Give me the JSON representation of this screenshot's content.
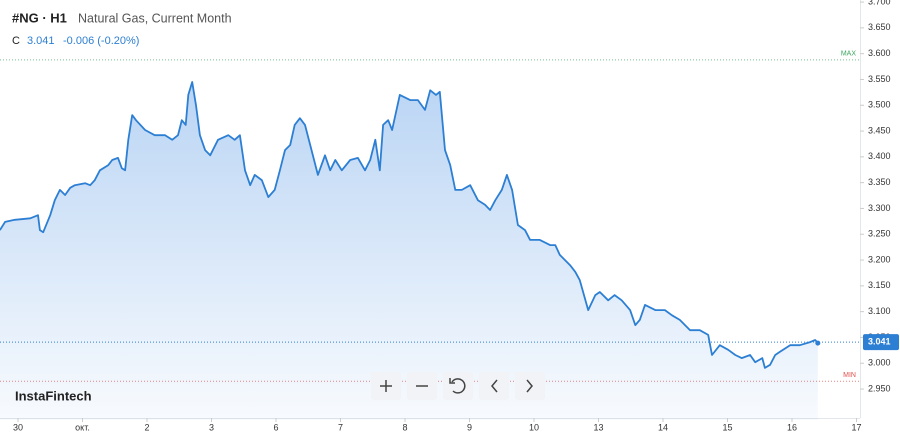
{
  "chart_data": {
    "type": "line",
    "title": "#NG · H1",
    "subtitle": "Natural Gas, Current Month",
    "legend": {
      "label": "C",
      "close": "3.041",
      "change": "-0.006 (-0.20%)"
    },
    "watermark": "InstaFintech",
    "color": "#2d7fd3",
    "xlim": [
      -0.279,
      13.054
    ],
    "ylim": [
      2.89,
      3.704
    ],
    "xticks": [
      {
        "value": 0,
        "label": "30"
      },
      {
        "value": 1,
        "label": "окт."
      },
      {
        "value": 2,
        "label": "2"
      },
      {
        "value": 3,
        "label": "3"
      },
      {
        "value": 4,
        "label": "6"
      },
      {
        "value": 5,
        "label": "7"
      },
      {
        "value": 6,
        "label": "8"
      },
      {
        "value": 7,
        "label": "9"
      },
      {
        "value": 8,
        "label": "10"
      },
      {
        "value": 9,
        "label": "13"
      },
      {
        "value": 10,
        "label": "14"
      },
      {
        "value": 11,
        "label": "15"
      },
      {
        "value": 12,
        "label": "16"
      },
      {
        "value": 13,
        "label": "17"
      }
    ],
    "yticks": [
      {
        "value": 2.95,
        "label": "2.950"
      },
      {
        "value": 3.0,
        "label": "3.000"
      },
      {
        "value": 3.05,
        "label": "3.050"
      },
      {
        "value": 3.1,
        "label": "3.100"
      },
      {
        "value": 3.15,
        "label": "3.150"
      },
      {
        "value": 3.2,
        "label": "3.200"
      },
      {
        "value": 3.25,
        "label": "3.250"
      },
      {
        "value": 3.3,
        "label": "3.300"
      },
      {
        "value": 3.35,
        "label": "3.350"
      },
      {
        "value": 3.4,
        "label": "3.400"
      },
      {
        "value": 3.45,
        "label": "3.450"
      },
      {
        "value": 3.5,
        "label": "3.500"
      },
      {
        "value": 3.55,
        "label": "3.550"
      },
      {
        "value": 3.6,
        "label": "3.600"
      },
      {
        "value": 3.65,
        "label": "3.650"
      },
      {
        "value": 3.7,
        "label": "3.700"
      }
    ],
    "max_line": {
      "value": 3.588,
      "label": "MAX",
      "color": "#3aa55d"
    },
    "min_line": {
      "value": 2.965,
      "label": "MIN",
      "color": "#e0504a"
    },
    "last_price": {
      "value": 3.041,
      "label": "3.041"
    },
    "x": [
      -0.28,
      -0.2,
      -0.05,
      0.19,
      0.31,
      0.34,
      0.39,
      0.5,
      0.57,
      0.65,
      0.73,
      0.81,
      0.88,
      1.04,
      1.12,
      1.19,
      1.27,
      1.4,
      1.46,
      1.55,
      1.61,
      1.66,
      1.71,
      1.77,
      1.83,
      1.97,
      2.12,
      2.28,
      2.39,
      2.48,
      2.54,
      2.6,
      2.64,
      2.7,
      2.76,
      2.82,
      2.9,
      2.98,
      3.1,
      3.26,
      3.36,
      3.44,
      3.52,
      3.6,
      3.67,
      3.78,
      3.88,
      3.98,
      4.06,
      4.14,
      4.22,
      4.29,
      4.37,
      4.45,
      4.53,
      4.65,
      4.76,
      4.84,
      4.92,
      5.02,
      5.15,
      5.27,
      5.38,
      5.46,
      5.54,
      5.61,
      5.66,
      5.74,
      5.8,
      5.92,
      6.08,
      6.2,
      6.31,
      6.39,
      6.48,
      6.54,
      6.62,
      6.7,
      6.78,
      6.88,
      7.01,
      7.13,
      7.24,
      7.32,
      7.4,
      7.5,
      7.58,
      7.66,
      7.75,
      7.86,
      7.94,
      8.09,
      8.25,
      8.33,
      8.4,
      8.56,
      8.64,
      8.71,
      8.84,
      8.95,
      9.02,
      9.15,
      9.25,
      9.36,
      9.49,
      9.57,
      9.64,
      9.72,
      9.88,
      10.03,
      10.14,
      10.26,
      10.42,
      10.57,
      10.7,
      10.76,
      10.88,
      11.01,
      11.12,
      11.22,
      11.35,
      11.43,
      11.54,
      11.58,
      11.66,
      11.74,
      11.81,
      11.97,
      12.12,
      12.28,
      12.36,
      12.4
    ],
    "values": [
      3.258,
      3.274,
      3.278,
      3.281,
      3.287,
      3.258,
      3.254,
      3.287,
      3.316,
      3.336,
      3.326,
      3.34,
      3.345,
      3.349,
      3.345,
      3.355,
      3.374,
      3.384,
      3.394,
      3.398,
      3.378,
      3.374,
      3.433,
      3.481,
      3.471,
      3.452,
      3.442,
      3.442,
      3.433,
      3.442,
      3.471,
      3.462,
      3.52,
      3.545,
      3.5,
      3.442,
      3.413,
      3.403,
      3.433,
      3.442,
      3.433,
      3.442,
      3.374,
      3.345,
      3.365,
      3.355,
      3.322,
      3.336,
      3.374,
      3.413,
      3.423,
      3.462,
      3.475,
      3.462,
      3.423,
      3.365,
      3.403,
      3.374,
      3.394,
      3.374,
      3.394,
      3.398,
      3.374,
      3.394,
      3.433,
      3.374,
      3.462,
      3.471,
      3.452,
      3.52,
      3.51,
      3.51,
      3.491,
      3.529,
      3.52,
      3.526,
      3.413,
      3.384,
      3.336,
      3.336,
      3.345,
      3.316,
      3.307,
      3.297,
      3.316,
      3.336,
      3.365,
      3.336,
      3.268,
      3.258,
      3.239,
      3.239,
      3.229,
      3.229,
      3.21,
      3.19,
      3.177,
      3.161,
      3.103,
      3.132,
      3.138,
      3.122,
      3.132,
      3.122,
      3.103,
      3.074,
      3.084,
      3.113,
      3.103,
      3.103,
      3.093,
      3.084,
      3.064,
      3.064,
      3.055,
      3.016,
      3.035,
      3.026,
      3.016,
      3.01,
      3.016,
      3.002,
      3.01,
      2.991,
      2.997,
      3.016,
      3.022,
      3.035,
      3.035,
      3.041,
      3.045,
      3.039
    ]
  }
}
